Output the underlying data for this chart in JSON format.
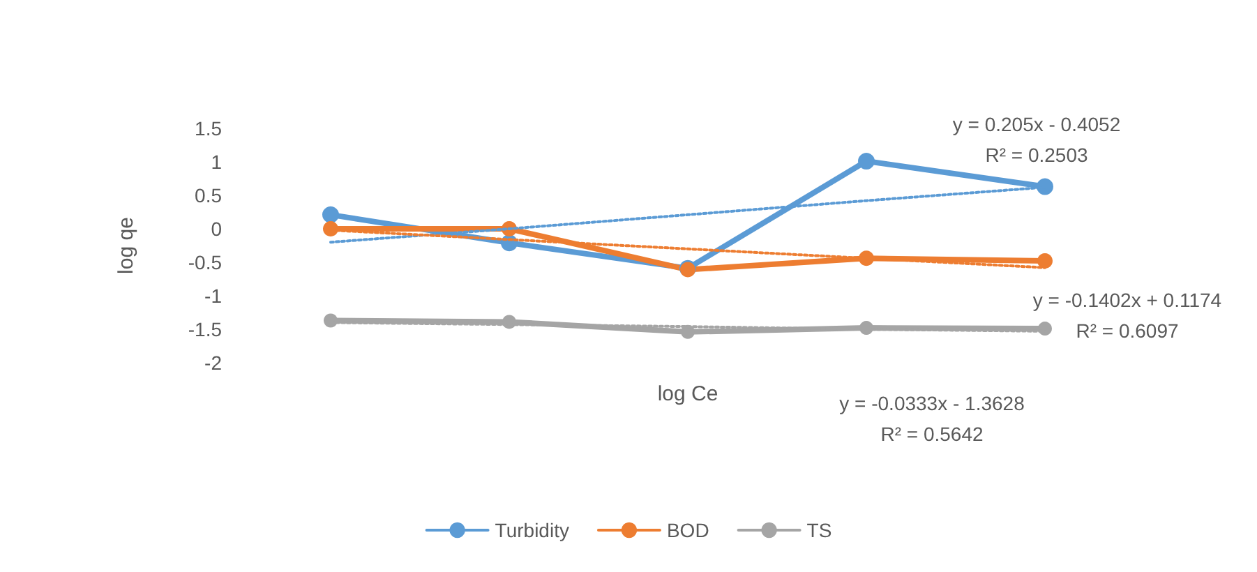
{
  "chart_data": {
    "type": "line",
    "xlabel": "log Ce",
    "ylabel": "log qe",
    "categories": [
      null,
      null,
      null,
      null,
      null
    ],
    "series": [
      {
        "name": "Turbidity",
        "color": "#5b9bd5",
        "values": [
          0.21,
          -0.21,
          -0.59,
          1.01,
          0.63
        ],
        "marker": "circle",
        "line_style": "solid"
      },
      {
        "name": "BOD",
        "color": "#ed7d31",
        "values": [
          0,
          0,
          -0.61,
          -0.44,
          -0.48
        ],
        "marker": "circle",
        "line_style": "solid"
      },
      {
        "name": "TS",
        "color": "#a5a5a5",
        "values": [
          -1.37,
          -1.39,
          -1.54,
          -1.48,
          -1.49
        ],
        "marker": "circle",
        "line_style": "solid"
      },
      {
        "color": "#5b9bd5",
        "values": [
          -0.2,
          0.0,
          0.21,
          0.42,
          0.62
        ],
        "marker": "none",
        "line_style": "dotted"
      },
      {
        "color": "#ed7d31",
        "values": [
          -0.02,
          -0.16,
          -0.3,
          -0.44,
          -0.58
        ],
        "marker": "none",
        "line_style": "dotted"
      },
      {
        "color": "#a5a5a5",
        "values": [
          -1.4,
          -1.43,
          -1.46,
          -1.5,
          -1.53
        ],
        "marker": "none",
        "line_style": "dotted"
      }
    ],
    "ylim": [
      -2,
      1.5
    ],
    "yticks": [
      -2,
      -1.5,
      -1,
      -0.5,
      0,
      0.5,
      1,
      1.5
    ],
    "grid": false,
    "legend": "bottom",
    "annotations": [
      "y = 0.205x - 0.4052\nR² = 0.2503",
      "y = -0.1402x + 0.1174\nR² = 0.6097",
      "y = -0.0333x - 1.3628\nR² = 0.5642"
    ]
  }
}
